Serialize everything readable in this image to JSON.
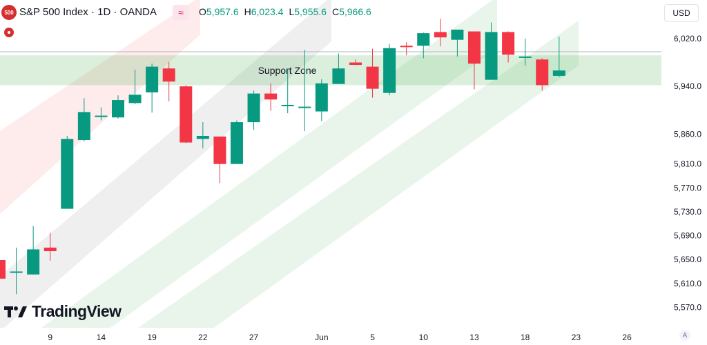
{
  "header": {
    "badge": "500",
    "title": "S&P 500 Index · 1D · OANDA",
    "indicator_icon": "wave-icon",
    "ohlc": [
      {
        "k": "O",
        "v": "5,957.6"
      },
      {
        "k": "H",
        "v": "6,023.4"
      },
      {
        "k": "L",
        "v": "5,955.6"
      },
      {
        "k": "C",
        "v": "5,966.6"
      }
    ]
  },
  "currency": "USD",
  "logo_text": "TradingView",
  "auto_label": "A",
  "colors": {
    "up": "#089981",
    "down": "#f23645",
    "support": "#c8e6c9",
    "grid": "#e0e3eb"
  },
  "chart_data": {
    "type": "candlestick",
    "ylim": [
      5530,
      6080
    ],
    "y_ticks": [
      "6,020.0",
      "5,940.0",
      "5,860.0",
      "5,810.0",
      "5,770.0",
      "5,730.0",
      "5,690.0",
      "5,650.0",
      "5,610.0",
      "5,570.0"
    ],
    "x_ticks": [
      "9",
      "14",
      "19",
      "22",
      "27",
      "Jun",
      "5",
      "10",
      "13",
      "18",
      "23",
      "26"
    ],
    "support_zone": {
      "label": "Support Zone",
      "low": 5942,
      "high": 5992
    },
    "reference_line": 5998,
    "candles": [
      {
        "o": 5649,
        "h": 5660,
        "l": 5606,
        "c": 5618
      },
      {
        "o": 5628,
        "h": 5670,
        "l": 5592,
        "c": 5630
      },
      {
        "o": 5625,
        "h": 5706,
        "l": 5625,
        "c": 5667
      },
      {
        "o": 5670,
        "h": 5695,
        "l": 5648,
        "c": 5664
      },
      {
        "o": 5735,
        "h": 5857,
        "l": 5735,
        "c": 5852
      },
      {
        "o": 5850,
        "h": 5920,
        "l": 5848,
        "c": 5897
      },
      {
        "o": 5890,
        "h": 5905,
        "l": 5883,
        "c": 5891
      },
      {
        "o": 5888,
        "h": 5925,
        "l": 5886,
        "c": 5917
      },
      {
        "o": 5912,
        "h": 5968,
        "l": 5910,
        "c": 5926
      },
      {
        "o": 5930,
        "h": 5978,
        "l": 5896,
        "c": 5973
      },
      {
        "o": 5970,
        "h": 5981,
        "l": 5915,
        "c": 5948
      },
      {
        "o": 5940,
        "h": 5942,
        "l": 5845,
        "c": 5846
      },
      {
        "o": 5852,
        "h": 5880,
        "l": 5836,
        "c": 5857
      },
      {
        "o": 5856,
        "h": 5856,
        "l": 5778,
        "c": 5810
      },
      {
        "o": 5810,
        "h": 5883,
        "l": 5810,
        "c": 5880
      },
      {
        "o": 5880,
        "h": 5933,
        "l": 5867,
        "c": 5928
      },
      {
        "o": 5928,
        "h": 5945,
        "l": 5899,
        "c": 5918
      },
      {
        "o": 5908,
        "h": 5970,
        "l": 5895,
        "c": 5909
      },
      {
        "o": 5906,
        "h": 6001,
        "l": 5865,
        "c": 5906
      },
      {
        "o": 5898,
        "h": 5952,
        "l": 5882,
        "c": 5945
      },
      {
        "o": 5944,
        "h": 5995,
        "l": 5944,
        "c": 5970
      },
      {
        "o": 5980,
        "h": 5985,
        "l": 5975,
        "c": 5976
      },
      {
        "o": 5973,
        "h": 6003,
        "l": 5921,
        "c": 5936
      },
      {
        "o": 5929,
        "h": 6011,
        "l": 5925,
        "c": 6004
      },
      {
        "o": 6008,
        "h": 6014,
        "l": 5992,
        "c": 6006
      },
      {
        "o": 6008,
        "h": 6030,
        "l": 5987,
        "c": 6029
      },
      {
        "o": 6031,
        "h": 6053,
        "l": 6007,
        "c": 6022
      },
      {
        "o": 6018,
        "h": 6032,
        "l": 5990,
        "c": 6035
      },
      {
        "o": 6032,
        "h": 6032,
        "l": 5935,
        "c": 5978
      },
      {
        "o": 5951,
        "h": 6047,
        "l": 5951,
        "c": 6031
      },
      {
        "o": 6031,
        "h": 6032,
        "l": 5980,
        "c": 5993
      },
      {
        "o": 5988,
        "h": 6020,
        "l": 5975,
        "c": 5990
      },
      {
        "o": 5985,
        "h": 5987,
        "l": 5933,
        "c": 5942
      },
      {
        "o": 5957.6,
        "h": 6023.4,
        "l": 5955.6,
        "c": 5966.6
      }
    ]
  }
}
